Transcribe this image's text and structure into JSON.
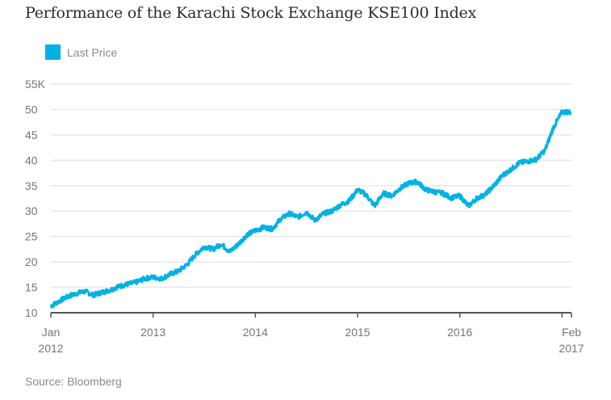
{
  "chart_data": {
    "type": "line",
    "title": "Performance of the Karachi Stock Exchange KSE100 Index",
    "legend": [
      {
        "label": "Last Price",
        "color": "#00b2e3"
      }
    ],
    "legend_position": "top-left",
    "source": "Source: Bloomberg",
    "xlabel": "",
    "ylabel": "",
    "ylim": [
      10000,
      55000
    ],
    "y_ticks": [
      {
        "value": 55000,
        "label": "55K"
      },
      {
        "value": 50000,
        "label": "50"
      },
      {
        "value": 45000,
        "label": "45"
      },
      {
        "value": 40000,
        "label": "40"
      },
      {
        "value": 35000,
        "label": "35"
      },
      {
        "value": 30000,
        "label": "30"
      },
      {
        "value": 25000,
        "label": "25"
      },
      {
        "value": 20000,
        "label": "20"
      },
      {
        "value": 15000,
        "label": "15"
      },
      {
        "value": 10000,
        "label": "10"
      }
    ],
    "xlim": [
      "2012-01",
      "2017-02"
    ],
    "x_ticks": [
      {
        "date": "2012-01",
        "line1": "Jan",
        "line2": "2012"
      },
      {
        "date": "2013-01",
        "line1": "2013",
        "line2": ""
      },
      {
        "date": "2014-01",
        "line1": "2014",
        "line2": ""
      },
      {
        "date": "2015-01",
        "line1": "2015",
        "line2": ""
      },
      {
        "date": "2016-01",
        "line1": "2016",
        "line2": ""
      },
      {
        "date": "2017-01",
        "line1": "",
        "line2": ""
      },
      {
        "date": "2017-02",
        "line1": "Feb",
        "line2": "2017"
      }
    ],
    "grid": true,
    "series": [
      {
        "name": "Last Price",
        "color": "#00b2e3",
        "x": [
          "2012-01",
          "2012-02",
          "2012-03",
          "2012-04",
          "2012-05",
          "2012-06",
          "2012-07",
          "2012-08",
          "2012-09",
          "2012-10",
          "2012-11",
          "2012-12",
          "2013-01",
          "2013-02",
          "2013-03",
          "2013-04",
          "2013-05",
          "2013-06",
          "2013-07",
          "2013-08",
          "2013-09",
          "2013-10",
          "2013-11",
          "2013-12",
          "2014-01",
          "2014-02",
          "2014-03",
          "2014-04",
          "2014-05",
          "2014-06",
          "2014-07",
          "2014-08",
          "2014-09",
          "2014-10",
          "2014-11",
          "2014-12",
          "2015-01",
          "2015-02",
          "2015-03",
          "2015-04",
          "2015-05",
          "2015-06",
          "2015-07",
          "2015-08",
          "2015-09",
          "2015-10",
          "2015-11",
          "2015-12",
          "2016-01",
          "2016-02",
          "2016-03",
          "2016-04",
          "2016-05",
          "2016-06",
          "2016-07",
          "2016-08",
          "2016-09",
          "2016-10",
          "2016-11",
          "2016-12",
          "2017-01",
          "2017-02"
        ],
        "values": [
          11300,
          12300,
          13200,
          13800,
          14200,
          13500,
          14000,
          14500,
          15200,
          15600,
          16000,
          16700,
          17000,
          16700,
          17600,
          18200,
          19500,
          21500,
          23000,
          22500,
          23500,
          22000,
          23500,
          25300,
          26200,
          26800,
          26500,
          28500,
          29500,
          28800,
          29800,
          28200,
          29500,
          30000,
          31200,
          32000,
          34200,
          33200,
          31000,
          33500,
          33000,
          34500,
          35500,
          35800,
          34200,
          33800,
          33500,
          32600,
          33000,
          31000,
          32500,
          33300,
          35000,
          37000,
          38200,
          39500,
          39800,
          40200,
          42000,
          46500,
          49500,
          49500
        ]
      }
    ]
  }
}
